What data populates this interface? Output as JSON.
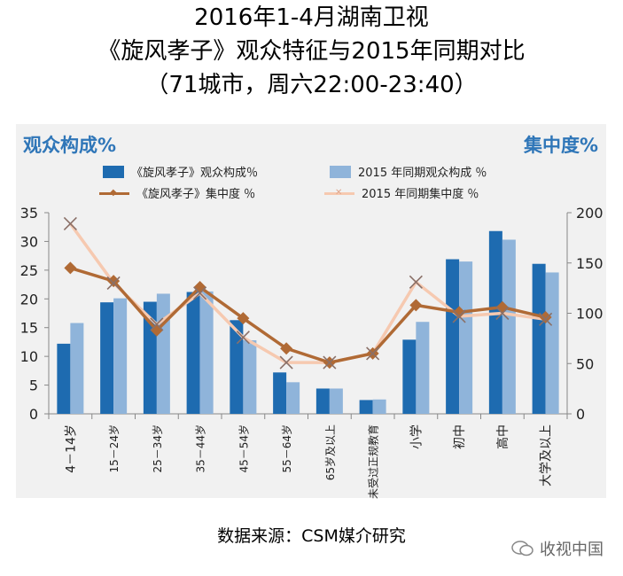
{
  "titles": {
    "line1": "2016年1-4月湖南卫视",
    "line2": "《旋风孝子》观众特征与2015年同期对比",
    "line3": "（71城市，周六22:00-23:40）"
  },
  "left_axis_title": "观众构成%",
  "right_axis_title": "集中度%",
  "source": "数据来源：CSM媒介研究",
  "watermark": "收视中国",
  "colors": {
    "bar_2016": "#1e6bb0",
    "bar_2015": "#8fb4da",
    "line_2016": "#b06a35",
    "line_2015": "#f6c9b0",
    "panel": "#f1f1f1"
  },
  "chart_data": {
    "type": "bar",
    "categories": [
      "4－14岁",
      "15－24岁",
      "25－34岁",
      "35－44岁",
      "45－54岁",
      "55－64岁",
      "65岁及以上",
      "未受过正规教育",
      "小学",
      "初中",
      "高中",
      "大学及以上"
    ],
    "yaxis_left": {
      "min": 0,
      "max": 35,
      "ticks": [
        0,
        5,
        10,
        15,
        20,
        25,
        30,
        35
      ]
    },
    "yaxis_right": {
      "min": 0,
      "max": 200,
      "ticks": [
        0,
        50,
        100,
        150,
        200
      ]
    },
    "series": [
      {
        "name": "《旋风孝子》观众构成％",
        "type": "bar",
        "axis": "left",
        "values": [
          12.2,
          19.4,
          19.5,
          21.2,
          16.3,
          7.2,
          4.4,
          2.4,
          12.9,
          26.9,
          31.8,
          26.1
        ]
      },
      {
        "name": "2015 年同期观众构成 ％",
        "type": "bar",
        "axis": "left",
        "values": [
          15.8,
          20.1,
          20.9,
          21.3,
          12.8,
          5.5,
          4.4,
          2.5,
          16.0,
          26.5,
          30.3,
          24.6
        ]
      },
      {
        "name": "《旋风孝子》集中度 ％",
        "type": "line",
        "axis": "right",
        "values": [
          145,
          132,
          83,
          126,
          95,
          65,
          51,
          60,
          108,
          101,
          106,
          96
        ]
      },
      {
        "name": "2015 年同期集中度 ％",
        "type": "line",
        "axis": "right",
        "values": [
          189,
          130,
          89,
          120,
          76,
          51,
          51,
          60,
          131,
          97,
          100,
          94
        ]
      }
    ]
  }
}
